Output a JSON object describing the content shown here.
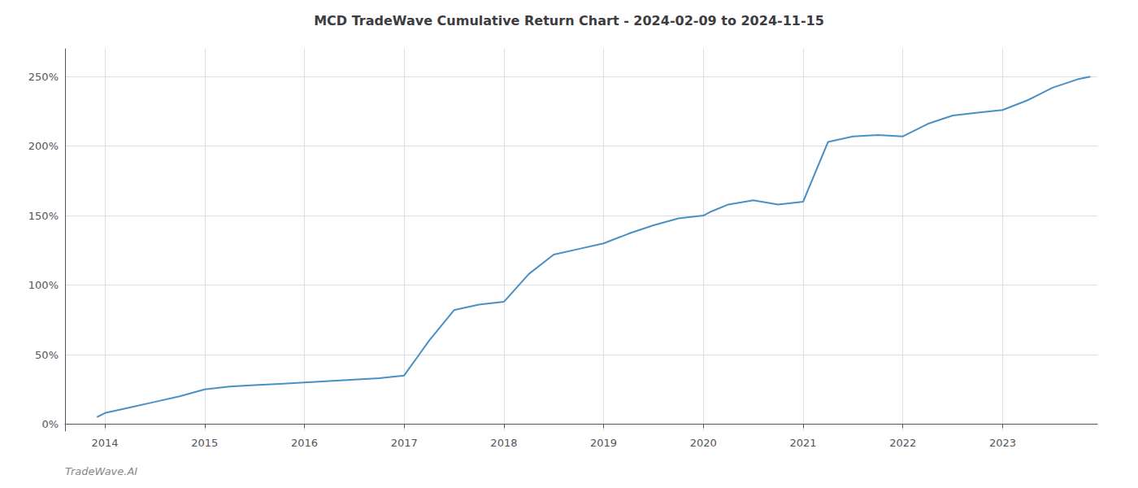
{
  "chart_data": {
    "type": "line",
    "title": "MCD TradeWave Cumulative Return Chart - 2024-02-09 to 2024-11-15",
    "annotations": [
      "TradeWave.AI"
    ],
    "color": "#4a90c4",
    "x": [
      2013.92,
      2014.0,
      2014.25,
      2014.5,
      2014.75,
      2015.0,
      2015.25,
      2015.5,
      2015.75,
      2016.0,
      2016.25,
      2016.5,
      2016.75,
      2017.0,
      2017.25,
      2017.5,
      2017.75,
      2018.0,
      2018.25,
      2018.5,
      2018.75,
      2019.0,
      2019.25,
      2019.5,
      2019.75,
      2020.0,
      2020.08,
      2020.25,
      2020.5,
      2020.75,
      2021.0,
      2021.25,
      2021.5,
      2021.75,
      2022.0,
      2022.25,
      2022.5,
      2022.75,
      2023.0,
      2023.25,
      2023.5,
      2023.75,
      2023.88
    ],
    "values": [
      5,
      8,
      12,
      16,
      20,
      25,
      27,
      28,
      29,
      30,
      31,
      32,
      33,
      35,
      60,
      82,
      86,
      88,
      108,
      122,
      126,
      130,
      137,
      143,
      148,
      150,
      153,
      158,
      161,
      158,
      160,
      203,
      207,
      208,
      207,
      216,
      222,
      224,
      226,
      233,
      242,
      248,
      250
    ],
    "xlim": [
      2013.6,
      2023.95
    ],
    "xticks": [
      2014,
      2015,
      2016,
      2017,
      2018,
      2019,
      2020,
      2021,
      2022,
      2023
    ],
    "ylim": [
      -5,
      270
    ],
    "yticks": [
      {
        "value": 0,
        "label": "0%"
      },
      {
        "value": 50,
        "label": "50%"
      },
      {
        "value": 100,
        "label": "100%"
      },
      {
        "value": 150,
        "label": "150%"
      },
      {
        "value": 200,
        "label": "200%"
      },
      {
        "value": 250,
        "label": "250%"
      }
    ],
    "grid": true
  }
}
